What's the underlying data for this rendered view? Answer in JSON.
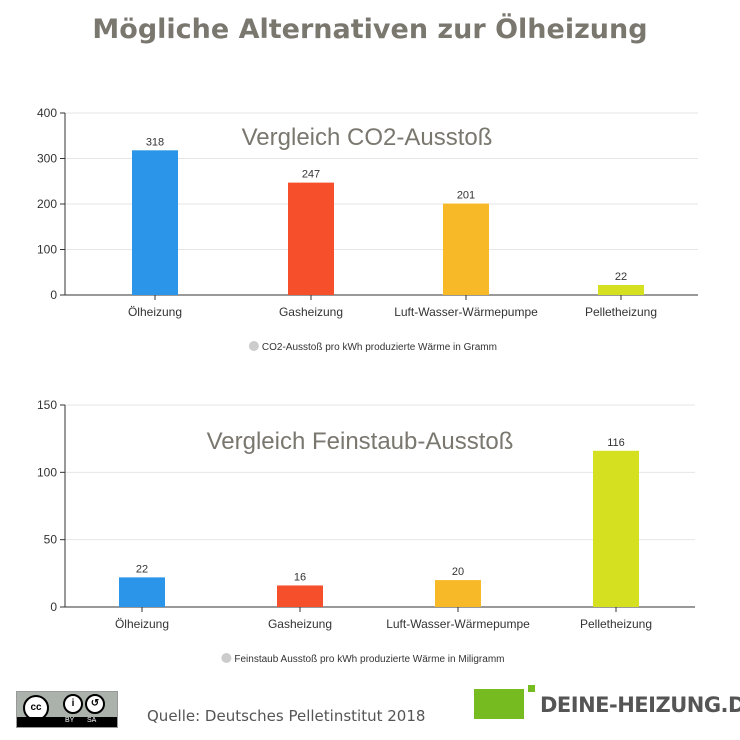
{
  "title": "Mögliche Alternativen zur Ölheizung",
  "chart_data": [
    {
      "type": "bar",
      "title": "Vergleich CO2-Ausstoß",
      "categories": [
        "Ölheizung",
        "Gasheizung",
        "Luft-Wasser-Wärmepumpe",
        "Pelletheizung"
      ],
      "values": [
        318,
        247,
        201,
        22
      ],
      "colors": [
        "#2b95e9",
        "#f64f2c",
        "#f7b928",
        "#d5e021"
      ],
      "legend": "CO2-Ausstoß pro kWh produzierte Wärme in Gramm",
      "legend_placement": "bottom",
      "ylim": [
        0,
        400
      ],
      "yticks": [
        0,
        100,
        200,
        300,
        400
      ],
      "grid": true
    },
    {
      "type": "bar",
      "title": "Vergleich Feinstaub-Ausstoß",
      "categories": [
        "Ölheizung",
        "Gasheizung",
        "Luft-Wasser-Wärmepumpe",
        "Pelletheizung"
      ],
      "values": [
        22,
        16,
        20,
        116
      ],
      "colors": [
        "#2b95e9",
        "#f64f2c",
        "#f7b928",
        "#d5e021"
      ],
      "legend": "Feinstaub Ausstoß pro kWh produzierte Wärme in Miligramm",
      "legend_placement": "bottom",
      "ylim": [
        0,
        150
      ],
      "yticks": [
        0,
        50,
        100,
        150
      ],
      "grid": true
    }
  ],
  "footer": {
    "source": "Quelle: Deutsches Pelletinstitut 2018",
    "license": {
      "cc": "cc",
      "by": "BY",
      "sa": "SA"
    },
    "brand": "DEINE-HEIZUNG.DE"
  }
}
